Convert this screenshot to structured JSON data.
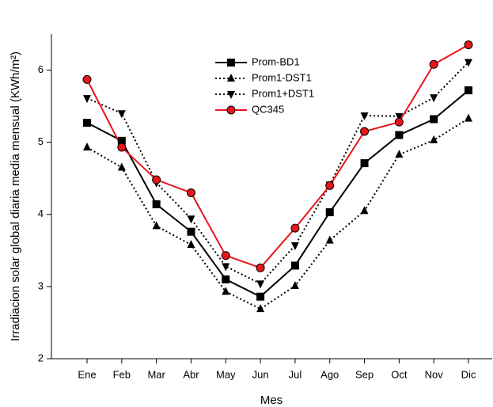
{
  "chart_data": {
    "type": "line",
    "x_label": "Mes",
    "y_label": "Irradiacion solar global diaria media mensual (KWh/m²)",
    "categories": [
      "Ene",
      "Feb",
      "Mar",
      "Abr",
      "May",
      "Jun",
      "Jul",
      "Ago",
      "Sep",
      "Oct",
      "Nov",
      "Dic"
    ],
    "series": [
      {
        "name": "Prom-BD1",
        "color": "#000000",
        "dash": "solid",
        "marker": "square",
        "values": [
          5.27,
          5.02,
          4.14,
          3.76,
          3.1,
          2.86,
          3.29,
          4.03,
          4.71,
          5.1,
          5.32,
          5.72
        ]
      },
      {
        "name": "Prom1-DST1",
        "color": "#000000",
        "dash": "dotted",
        "marker": "triangle-up",
        "values": [
          4.93,
          4.65,
          3.84,
          3.58,
          2.93,
          2.69,
          3.01,
          3.64,
          4.05,
          4.83,
          5.03,
          5.33
        ]
      },
      {
        "name": "Prom1+DST1",
        "color": "#000000",
        "dash": "dotted",
        "marker": "triangle-down",
        "values": [
          5.61,
          5.4,
          4.44,
          3.94,
          3.28,
          3.04,
          3.57,
          4.41,
          5.37,
          5.36,
          5.62,
          6.11
        ]
      },
      {
        "name": "QC345",
        "color": "#e8161b",
        "dash": "solid",
        "marker": "circle",
        "values": [
          5.87,
          4.93,
          4.48,
          4.3,
          3.43,
          3.26,
          3.81,
          4.4,
          5.15,
          5.28,
          6.08,
          6.35
        ]
      }
    ],
    "ylim": [
      2,
      6.5
    ],
    "yticks": [
      2,
      3,
      4,
      5,
      6
    ],
    "grid": false
  }
}
